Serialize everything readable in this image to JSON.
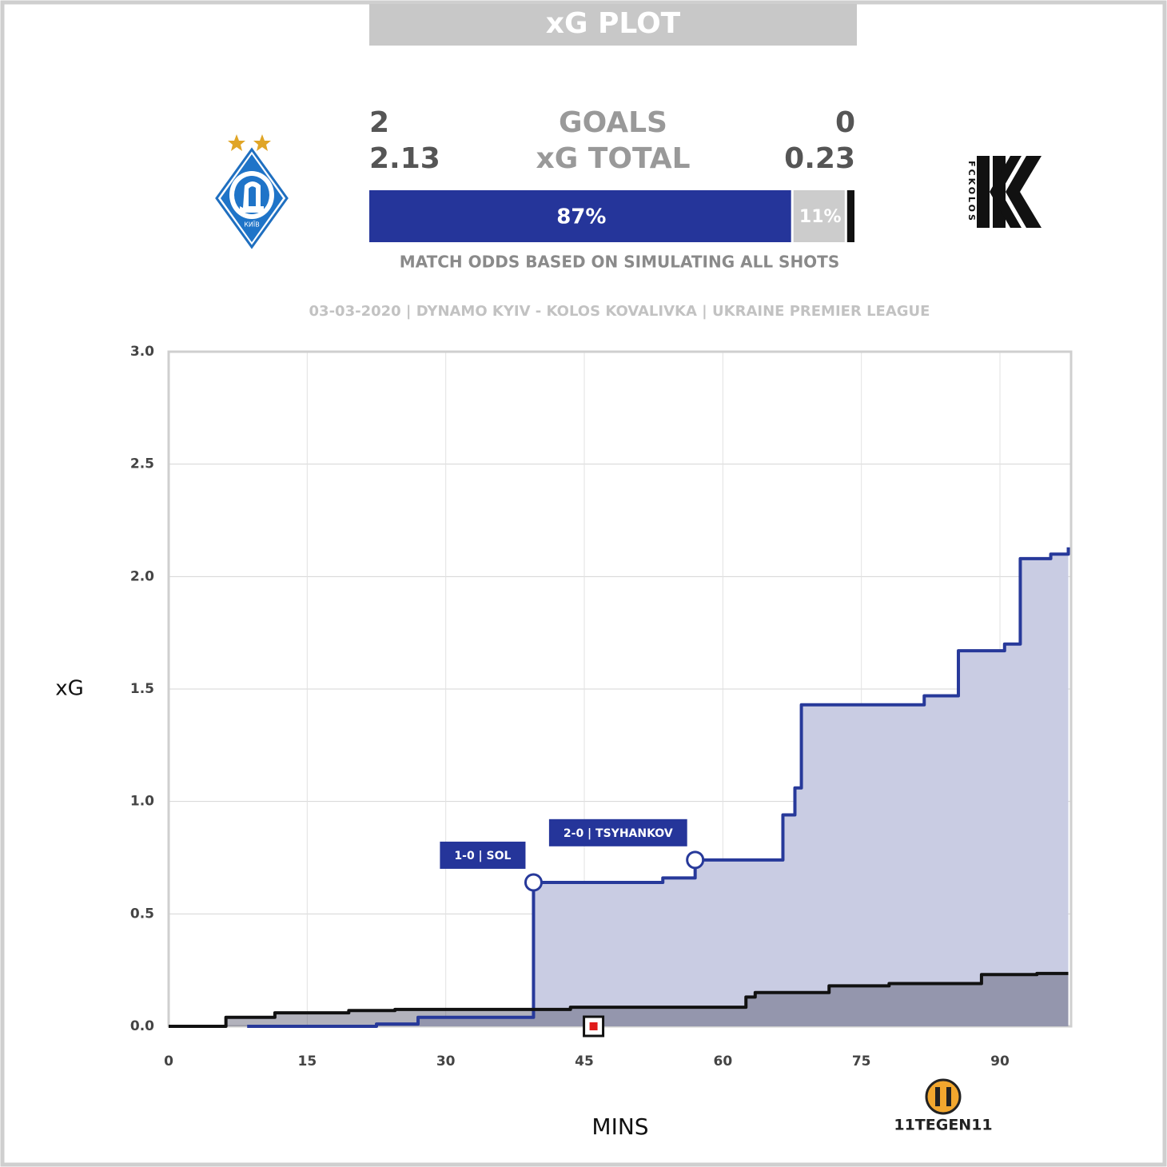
{
  "title": "xG PLOT",
  "scoreboard": {
    "home_goals": 2,
    "goals_label": "GOALS",
    "away_goals": 0,
    "home_xg": 2.13,
    "xg_label": "xG TOTAL",
    "away_xg": 0.23
  },
  "odds": {
    "values": [
      87,
      11,
      2
    ],
    "value_labels": [
      "87%",
      "11%",
      null
    ],
    "colors": [
      "#25359a",
      "#cccccc",
      "#111111"
    ]
  },
  "note": "MATCH ODDS BASED ON SIMULATING ALL SHOTS",
  "match_info": "03-03-2020 | DYNAMO KYIV - KOLOS KOVALIVKA | UKRAINE PREMIER LEAGUE",
  "dynamo_logo_text": "КИЇВ",
  "kolos_logo_text": "FCKOLOS",
  "brand": "11TEGEN11",
  "chart_data": {
    "type": "step",
    "x_label": "MINS",
    "y_label": "xG",
    "xlim": [
      0,
      97.7
    ],
    "ylim": [
      0,
      3
    ],
    "xticks": [
      0,
      15,
      30,
      45,
      60,
      75,
      90
    ],
    "yticks": [
      {
        "value": 0,
        "label": "0.0"
      },
      0.5,
      {
        "value": 1,
        "label": "1.0"
      },
      1.5,
      {
        "value": 2,
        "label": "2.0"
      },
      2.5,
      {
        "value": 3,
        "label": "3.0"
      }
    ],
    "grid": true,
    "series": [
      {
        "color": "#27399a",
        "fill": "#c9cce3",
        "x": [
          8.5,
          22.5,
          27,
          39.5,
          53.5,
          57,
          66.5,
          67.8,
          68.5,
          81.8,
          85.5,
          90.5,
          92.2,
          95.5,
          97.4
        ],
        "values": [
          0,
          0.01,
          0.04,
          0.64,
          0.66,
          0.74,
          0.94,
          1.06,
          1.43,
          1.47,
          1.67,
          1.7,
          2.08,
          2.1,
          2.13
        ]
      },
      {
        "color": "#111111",
        "fill": "#55556a",
        "x": [
          0,
          6.2,
          11.5,
          19.5,
          24.5,
          43.5,
          62.5,
          63.5,
          71.5,
          78,
          88,
          94,
          97.4
        ],
        "values": [
          0,
          0.04,
          0.06,
          0.07,
          0.075,
          0.085,
          0.13,
          0.15,
          0.18,
          0.19,
          0.23,
          0.235,
          0.235
        ]
      }
    ],
    "annotations": [
      {
        "text": "1-0 | SOL",
        "x": 39.5,
        "y": 0.64
      },
      {
        "text": "2-0 | TSYHANKOV",
        "x": 57,
        "y": 0.74
      }
    ],
    "half_time_marker": {
      "x": 46,
      "y": 0
    }
  }
}
